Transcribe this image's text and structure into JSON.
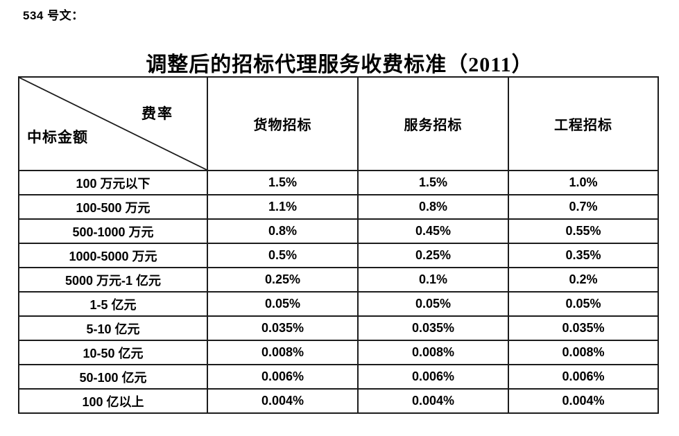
{
  "document": {
    "doc_label": "534 号文：",
    "title": "调整后的招标代理服务收费标准（2011）"
  },
  "table": {
    "corner": {
      "top_right": "费率",
      "bottom_left": "中标金额"
    },
    "columns": [
      "货物招标",
      "服务招标",
      "工程招标"
    ],
    "rows": [
      {
        "label": "100 万元以下",
        "values": [
          "1.5%",
          "1.5%",
          "1.0%"
        ]
      },
      {
        "label": "100-500 万元",
        "values": [
          "1.1%",
          "0.8%",
          "0.7%"
        ]
      },
      {
        "label": "500-1000 万元",
        "values": [
          "0.8%",
          "0.45%",
          "0.55%"
        ]
      },
      {
        "label": "1000-5000 万元",
        "values": [
          "0.5%",
          "0.25%",
          "0.35%"
        ]
      },
      {
        "label": "5000 万元-1 亿元",
        "values": [
          "0.25%",
          "0.1%",
          "0.2%"
        ]
      },
      {
        "label": "1-5 亿元",
        "values": [
          "0.05%",
          "0.05%",
          "0.05%"
        ]
      },
      {
        "label": "5-10 亿元",
        "values": [
          "0.035%",
          "0.035%",
          "0.035%"
        ]
      },
      {
        "label": "10-50 亿元",
        "values": [
          "0.008%",
          "0.008%",
          "0.008%"
        ]
      },
      {
        "label": "50-100 亿元",
        "values": [
          "0.006%",
          "0.006%",
          "0.006%"
        ]
      },
      {
        "label": "100 亿以上",
        "values": [
          "0.004%",
          "0.004%",
          "0.004%"
        ]
      }
    ]
  },
  "colors": {
    "text": "#000000",
    "border": "#1c1c1c",
    "background": "#ffffff"
  }
}
